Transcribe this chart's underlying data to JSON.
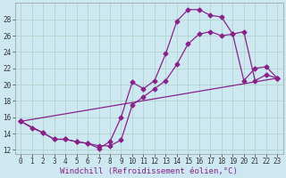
{
  "xlabel": "Windchill (Refroidissement éolien,°C)",
  "bg_color": "#cde8f0",
  "grid_color": "#b0d4cc",
  "line_color": "#882288",
  "xlim": [
    -0.5,
    23.5
  ],
  "ylim": [
    11.5,
    30
  ],
  "yticks": [
    12,
    14,
    16,
    18,
    20,
    22,
    24,
    26,
    28
  ],
  "xticks": [
    0,
    1,
    2,
    3,
    4,
    5,
    6,
    7,
    8,
    9,
    10,
    11,
    12,
    13,
    14,
    15,
    16,
    17,
    18,
    19,
    20,
    21,
    22,
    23
  ],
  "curve1_x": [
    0,
    1,
    2,
    3,
    4,
    5,
    6,
    7,
    8,
    9,
    10,
    11,
    12,
    13,
    14,
    15,
    16,
    17,
    18,
    19,
    20,
    21,
    22,
    23
  ],
  "curve1_y": [
    15.5,
    14.7,
    14.1,
    13.3,
    13.3,
    13.0,
    12.8,
    12.2,
    13.0,
    16.0,
    20.3,
    19.5,
    20.5,
    23.8,
    27.8,
    29.2,
    29.2,
    28.5,
    28.3,
    26.2,
    20.5,
    22.0,
    22.2,
    20.8
  ],
  "curve2_x": [
    0,
    2,
    3,
    4,
    5,
    6,
    7,
    8,
    9,
    10,
    11,
    12,
    13,
    14,
    15,
    16,
    17,
    18,
    19,
    20,
    21,
    22,
    23
  ],
  "curve2_y": [
    15.5,
    14.1,
    13.3,
    13.3,
    13.0,
    12.8,
    12.5,
    12.5,
    13.2,
    17.5,
    18.5,
    19.5,
    20.5,
    22.5,
    25.0,
    26.2,
    26.5,
    26.0,
    26.2,
    26.5,
    20.5,
    21.2,
    20.8
  ],
  "curve3_x": [
    0,
    23
  ],
  "curve3_y": [
    15.5,
    20.8
  ],
  "xlabel_fontsize": 6.5,
  "tick_fontsize": 5.5,
  "marker": "D",
  "markersize": 2.5,
  "linewidth": 0.9
}
